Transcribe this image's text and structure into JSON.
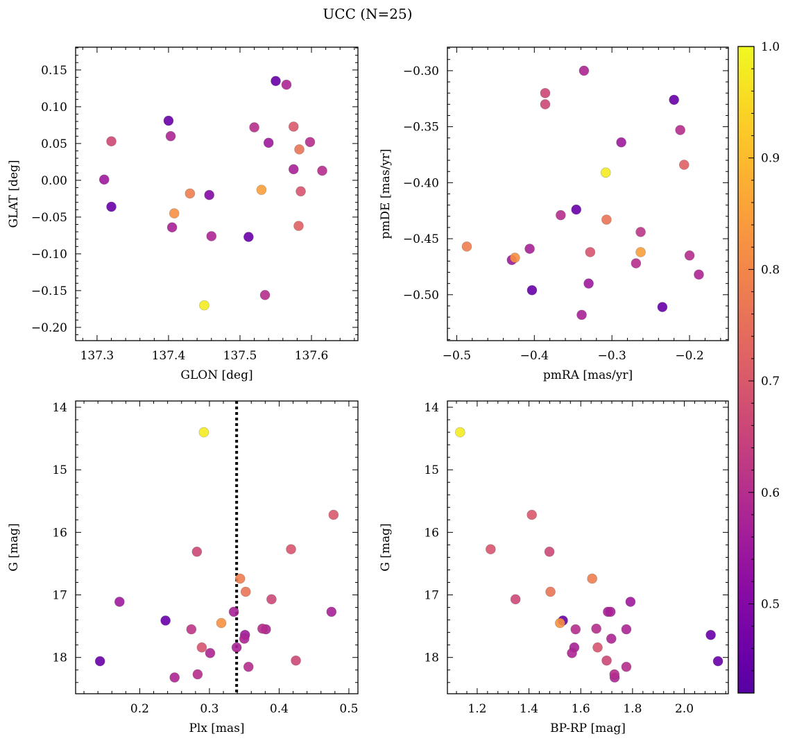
{
  "figure": {
    "title": "UCC (N=25)",
    "colorbar": {
      "vmin": 0.42,
      "vmax": 1.0,
      "ticks": [
        0.5,
        0.6,
        0.7,
        0.8,
        0.9,
        1.0
      ],
      "tick_labels": [
        "0.5",
        "0.6",
        "0.7",
        "0.8",
        "0.9",
        "1.0"
      ],
      "colormap": "plasma"
    }
  },
  "chart_data": [
    {
      "type": "scatter",
      "xlabel": "GLON [deg]",
      "ylabel": "GLAT [deg]",
      "xlim": [
        137.27,
        137.665
      ],
      "ylim": [
        -0.218,
        0.181
      ],
      "x_ticks": [
        137.3,
        137.4,
        137.5,
        137.6
      ],
      "x_tick_labels": [
        "137.3",
        "137.4",
        "137.5",
        "137.6"
      ],
      "y_ticks": [
        -0.2,
        -0.15,
        -0.1,
        -0.05,
        0.0,
        0.05,
        0.1,
        0.15
      ],
      "y_tick_labels": [
        "−0.20",
        "−0.15",
        "−0.10",
        "−0.05",
        "0.00",
        "0.05",
        "0.10",
        "0.15"
      ],
      "y_inverted": false,
      "vline": null,
      "points": [
        {
          "x": 137.55,
          "y": 0.135,
          "c": 0.45
        },
        {
          "x": 137.565,
          "y": 0.13,
          "c": 0.58
        },
        {
          "x": 137.4,
          "y": 0.081,
          "c": 0.45
        },
        {
          "x": 137.52,
          "y": 0.072,
          "c": 0.6
        },
        {
          "x": 137.575,
          "y": 0.073,
          "c": 0.7
        },
        {
          "x": 137.403,
          "y": 0.06,
          "c": 0.58
        },
        {
          "x": 137.32,
          "y": 0.053,
          "c": 0.66
        },
        {
          "x": 137.54,
          "y": 0.051,
          "c": 0.55
        },
        {
          "x": 137.598,
          "y": 0.052,
          "c": 0.6
        },
        {
          "x": 137.583,
          "y": 0.042,
          "c": 0.76
        },
        {
          "x": 137.575,
          "y": 0.015,
          "c": 0.57
        },
        {
          "x": 137.615,
          "y": 0.013,
          "c": 0.6
        },
        {
          "x": 137.31,
          "y": 0.001,
          "c": 0.55
        },
        {
          "x": 137.43,
          "y": -0.018,
          "c": 0.78
        },
        {
          "x": 137.53,
          "y": -0.013,
          "c": 0.85
        },
        {
          "x": 137.585,
          "y": -0.015,
          "c": 0.69
        },
        {
          "x": 137.457,
          "y": -0.02,
          "c": 0.5
        },
        {
          "x": 137.32,
          "y": -0.036,
          "c": 0.45
        },
        {
          "x": 137.408,
          "y": -0.045,
          "c": 0.82
        },
        {
          "x": 137.405,
          "y": -0.064,
          "c": 0.57
        },
        {
          "x": 137.582,
          "y": -0.062,
          "c": 0.72
        },
        {
          "x": 137.46,
          "y": -0.076,
          "c": 0.58
        },
        {
          "x": 137.512,
          "y": -0.077,
          "c": 0.45
        },
        {
          "x": 137.535,
          "y": -0.156,
          "c": 0.6
        },
        {
          "x": 137.45,
          "y": -0.17,
          "c": 0.98
        }
      ]
    },
    {
      "type": "scatter",
      "xlabel": "pmRA [mas/yr]",
      "ylabel": "pmDE [mas/yr]",
      "xlim": [
        -0.512,
        -0.15
      ],
      "ylim": [
        -0.541,
        -0.279
      ],
      "x_ticks": [
        -0.5,
        -0.4,
        -0.3,
        -0.2
      ],
      "x_tick_labels": [
        "−0.5",
        "−0.4",
        "−0.3",
        "−0.2"
      ],
      "y_ticks": [
        -0.5,
        -0.45,
        -0.4,
        -0.35,
        -0.3
      ],
      "y_tick_labels": [
        "−0.50",
        "−0.45",
        "−0.40",
        "−0.35",
        "−0.30"
      ],
      "y_inverted": false,
      "vline": null,
      "points": [
        {
          "x": -0.336,
          "y": -0.3,
          "c": 0.58
        },
        {
          "x": -0.386,
          "y": -0.32,
          "c": 0.66
        },
        {
          "x": -0.386,
          "y": -0.33,
          "c": 0.66
        },
        {
          "x": -0.22,
          "y": -0.326,
          "c": 0.45
        },
        {
          "x": -0.212,
          "y": -0.353,
          "c": 0.6
        },
        {
          "x": -0.288,
          "y": -0.364,
          "c": 0.55
        },
        {
          "x": -0.207,
          "y": -0.384,
          "c": 0.72
        },
        {
          "x": -0.308,
          "y": -0.391,
          "c": 0.98
        },
        {
          "x": -0.346,
          "y": -0.424,
          "c": 0.45
        },
        {
          "x": -0.366,
          "y": -0.429,
          "c": 0.6
        },
        {
          "x": -0.307,
          "y": -0.433,
          "c": 0.76
        },
        {
          "x": -0.263,
          "y": -0.444,
          "c": 0.62
        },
        {
          "x": -0.487,
          "y": -0.457,
          "c": 0.78
        },
        {
          "x": -0.406,
          "y": -0.459,
          "c": 0.57
        },
        {
          "x": -0.328,
          "y": -0.462,
          "c": 0.69
        },
        {
          "x": -0.263,
          "y": -0.462,
          "c": 0.85
        },
        {
          "x": -0.425,
          "y": -0.467,
          "c": 0.82
        },
        {
          "x": -0.429,
          "y": -0.469,
          "c": 0.55
        },
        {
          "x": -0.2,
          "y": -0.465,
          "c": 0.6
        },
        {
          "x": -0.269,
          "y": -0.472,
          "c": 0.6
        },
        {
          "x": -0.188,
          "y": -0.482,
          "c": 0.58
        },
        {
          "x": -0.33,
          "y": -0.49,
          "c": 0.55
        },
        {
          "x": -0.403,
          "y": -0.496,
          "c": 0.45
        },
        {
          "x": -0.235,
          "y": -0.511,
          "c": 0.45
        },
        {
          "x": -0.339,
          "y": -0.518,
          "c": 0.57
        }
      ]
    },
    {
      "type": "scatter",
      "xlabel": "Plx [mas]",
      "ylabel": "G [mag]",
      "xlim": [
        0.108,
        0.513
      ],
      "ylim": [
        13.9,
        18.58
      ],
      "x_ticks": [
        0.2,
        0.3,
        0.4,
        0.5
      ],
      "x_tick_labels": [
        "0.2",
        "0.3",
        "0.4",
        "0.5"
      ],
      "y_ticks": [
        14,
        15,
        16,
        17,
        18
      ],
      "y_tick_labels": [
        "14",
        "15",
        "16",
        "17",
        "18"
      ],
      "y_inverted": true,
      "vline": {
        "x": 0.339,
        "style": "dotted"
      },
      "points": [
        {
          "x": 0.292,
          "y": 14.4,
          "c": 0.98
        },
        {
          "x": 0.478,
          "y": 15.72,
          "c": 0.7
        },
        {
          "x": 0.417,
          "y": 16.27,
          "c": 0.69
        },
        {
          "x": 0.282,
          "y": 16.31,
          "c": 0.66
        },
        {
          "x": 0.344,
          "y": 16.74,
          "c": 0.78
        },
        {
          "x": 0.352,
          "y": 16.95,
          "c": 0.76
        },
        {
          "x": 0.389,
          "y": 17.07,
          "c": 0.66
        },
        {
          "x": 0.171,
          "y": 17.11,
          "c": 0.55
        },
        {
          "x": 0.335,
          "y": 17.27,
          "c": 0.57
        },
        {
          "x": 0.475,
          "y": 17.27,
          "c": 0.57
        },
        {
          "x": 0.237,
          "y": 17.41,
          "c": 0.45
        },
        {
          "x": 0.317,
          "y": 17.45,
          "c": 0.82
        },
        {
          "x": 0.274,
          "y": 17.55,
          "c": 0.62
        },
        {
          "x": 0.376,
          "y": 17.54,
          "c": 0.6
        },
        {
          "x": 0.381,
          "y": 17.55,
          "c": 0.58
        },
        {
          "x": 0.351,
          "y": 17.64,
          "c": 0.55
        },
        {
          "x": 0.35,
          "y": 17.7,
          "c": 0.58
        },
        {
          "x": 0.289,
          "y": 17.84,
          "c": 0.69
        },
        {
          "x": 0.339,
          "y": 17.84,
          "c": 0.57
        },
        {
          "x": 0.301,
          "y": 17.93,
          "c": 0.58
        },
        {
          "x": 0.143,
          "y": 18.06,
          "c": 0.45
        },
        {
          "x": 0.424,
          "y": 18.05,
          "c": 0.66
        },
        {
          "x": 0.356,
          "y": 18.15,
          "c": 0.6
        },
        {
          "x": 0.283,
          "y": 18.27,
          "c": 0.6
        },
        {
          "x": 0.25,
          "y": 18.32,
          "c": 0.58
        }
      ]
    },
    {
      "type": "scatter",
      "xlabel": "BP-RP [mag]",
      "ylabel": "G [mag]",
      "xlim": [
        1.085,
        2.17
      ],
      "ylim": [
        13.9,
        18.58
      ],
      "x_ticks": [
        1.2,
        1.4,
        1.6,
        1.8,
        2.0
      ],
      "x_tick_labels": [
        "1.2",
        "1.4",
        "1.6",
        "1.8",
        "2.0"
      ],
      "y_ticks": [
        14,
        15,
        16,
        17,
        18
      ],
      "y_tick_labels": [
        "14",
        "15",
        "16",
        "17",
        "18"
      ],
      "y_inverted": true,
      "vline": null,
      "points": [
        {
          "x": 1.134,
          "y": 14.4,
          "c": 0.98
        },
        {
          "x": 1.411,
          "y": 15.72,
          "c": 0.7
        },
        {
          "x": 1.252,
          "y": 16.27,
          "c": 0.69
        },
        {
          "x": 1.479,
          "y": 16.31,
          "c": 0.66
        },
        {
          "x": 1.644,
          "y": 16.74,
          "c": 0.78
        },
        {
          "x": 1.483,
          "y": 16.95,
          "c": 0.76
        },
        {
          "x": 1.348,
          "y": 17.07,
          "c": 0.66
        },
        {
          "x": 1.792,
          "y": 17.11,
          "c": 0.55
        },
        {
          "x": 1.705,
          "y": 17.27,
          "c": 0.57
        },
        {
          "x": 1.715,
          "y": 17.27,
          "c": 0.57
        },
        {
          "x": 1.531,
          "y": 17.41,
          "c": 0.45
        },
        {
          "x": 1.52,
          "y": 17.45,
          "c": 0.82
        },
        {
          "x": 1.58,
          "y": 17.55,
          "c": 0.6
        },
        {
          "x": 1.66,
          "y": 17.54,
          "c": 0.6
        },
        {
          "x": 1.776,
          "y": 17.55,
          "c": 0.58
        },
        {
          "x": 1.718,
          "y": 17.7,
          "c": 0.58
        },
        {
          "x": 2.102,
          "y": 17.64,
          "c": 0.45
        },
        {
          "x": 1.665,
          "y": 17.84,
          "c": 0.69
        },
        {
          "x": 1.575,
          "y": 17.84,
          "c": 0.57
        },
        {
          "x": 1.566,
          "y": 17.93,
          "c": 0.58
        },
        {
          "x": 1.7,
          "y": 18.05,
          "c": 0.66
        },
        {
          "x": 2.13,
          "y": 18.06,
          "c": 0.45
        },
        {
          "x": 1.776,
          "y": 18.15,
          "c": 0.6
        },
        {
          "x": 1.73,
          "y": 18.27,
          "c": 0.6
        },
        {
          "x": 1.731,
          "y": 18.32,
          "c": 0.58
        }
      ]
    }
  ]
}
